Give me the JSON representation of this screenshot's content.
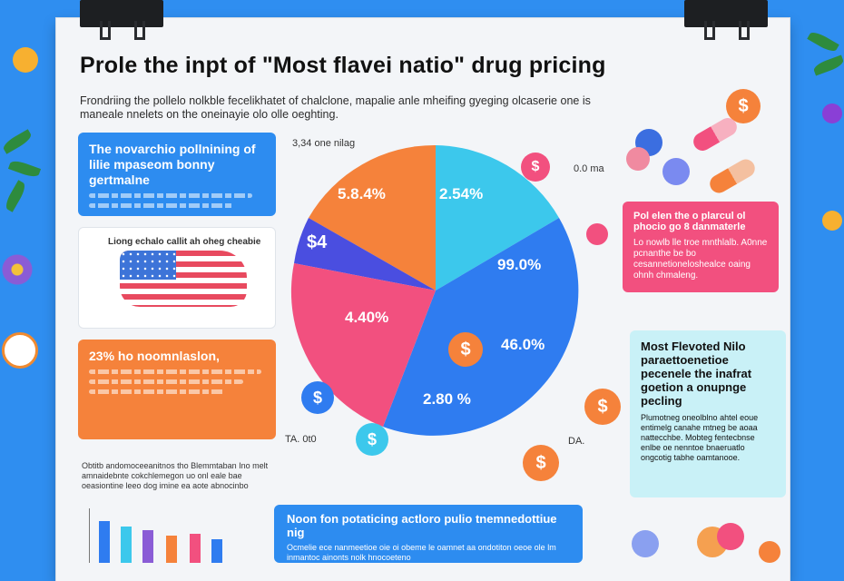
{
  "poster": {
    "title": "Prole the inpt of \"Most flavei natio\" drug pricing",
    "intro": "Frondriing the pollelo nolkble fecelikhatet of chalclone, mapalie anle mheifing gyeging olcaserie one is maneale nnelets on the oneinayie olo olle oeghting."
  },
  "left_cards": {
    "blue": {
      "head": "The novarchio pollnining of lilie mpaseom bonny gertmalne"
    },
    "map": {
      "head": "Liong echalo callit ah oheg cheabie"
    },
    "orange": {
      "head": "23% ho noomnlaslon,"
    }
  },
  "pie": {
    "top_label": "3,34 one nilag",
    "slices": [
      "5.8.4%",
      "2.54%",
      "99.0%",
      "4.40%",
      "46.0%",
      "2.80 %"
    ],
    "small_left": "$4",
    "label_left_bottom": "TA. 0t0",
    "label_right_bottom": "DA.",
    "label_top_right": "0.0 ma"
  },
  "right_cards": {
    "pink": {
      "head": "Pol elen the o plarcul ol phocio go 8 danmaterle",
      "body": "Lo nowlb lle troe mnthlalb. A0nne pcnanthe be bo cesannetioneloshealce oaing ohnh chmaleng."
    },
    "cyan": {
      "head": "Most Flevoted Nilo paraettoenetioe pecenele the inafrat goetion a onupnge pecling",
      "body": "Plumotneg oneolblno ahtel eoue entimelg canahe mtneg be aoaa nattecchbe. Mobteg fentecbnse enlbe oe nenntoe bnaeruatlo ongcotig tabhe oamtanooe."
    }
  },
  "bottom": {
    "left_text": "Obtitb andomoceeanitnos tho Blemmtaban Ino melt amnaidebnte cokchlemegon uo onl eale bae oeasiontine leeo dog imine ea aote abnocinbo",
    "callout_head": "Noon fon potaticing actloro pulio tnemnedottiue nig",
    "callout_body": "Ocmelie ece nanmeetioe oie oi obeme le oamnet aa ondotiton oeoe ole lm inmantoc ainonts nolk hnocoeteno"
  },
  "colors": {
    "orange": "#f5823b",
    "cyan": "#3cc8ec",
    "blue": "#2f7cf0",
    "pink": "#f2507f",
    "violet": "#4a4ee0",
    "background": "#2f8ef0"
  },
  "icons": [
    "dollar-coin-icon",
    "pill-capsule-icon",
    "leaf-icon",
    "flower-icon",
    "us-map-icon"
  ]
}
